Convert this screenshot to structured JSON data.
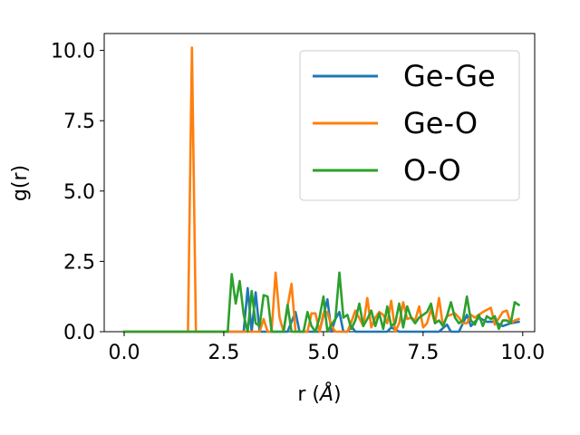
{
  "chart_data": {
    "type": "line",
    "xlabel_prefix": "r (",
    "xlabel_unit": "Å",
    "xlabel_suffix": ")",
    "ylabel": "g(r)",
    "xlim": [
      -0.5,
      10.3
    ],
    "ylim": [
      0,
      10.6
    ],
    "xticks": [
      0.0,
      2.5,
      5.0,
      7.5,
      10.0
    ],
    "xtick_labels": [
      "0.0",
      "2.5",
      "5.0",
      "7.5",
      "10.0"
    ],
    "yticks": [
      0.0,
      2.5,
      5.0,
      7.5,
      10.0
    ],
    "ytick_labels": [
      "0.0",
      "2.5",
      "5.0",
      "7.5",
      "10.0"
    ],
    "grid": false,
    "legend_position": "upper right",
    "series": [
      {
        "name": "Ge-Ge",
        "color": "#1f77b4",
        "points": [
          [
            0.0,
            0
          ],
          [
            3.0,
            0
          ],
          [
            3.1,
            1.55
          ],
          [
            3.2,
            0
          ],
          [
            3.3,
            1.4
          ],
          [
            3.4,
            0
          ],
          [
            3.5,
            0
          ],
          [
            3.6,
            0
          ],
          [
            4.0,
            0
          ],
          [
            4.1,
            0
          ],
          [
            4.3,
            0.7
          ],
          [
            4.4,
            0
          ],
          [
            4.5,
            0
          ],
          [
            4.6,
            0
          ],
          [
            4.9,
            0
          ],
          [
            5.1,
            1.15
          ],
          [
            5.2,
            0
          ],
          [
            5.3,
            0.45
          ],
          [
            5.4,
            0.7
          ],
          [
            5.5,
            0
          ],
          [
            5.6,
            0
          ],
          [
            5.7,
            0.2
          ],
          [
            5.8,
            0
          ],
          [
            6.0,
            0
          ],
          [
            6.2,
            0
          ],
          [
            6.6,
            0
          ],
          [
            6.7,
            0.15
          ],
          [
            6.9,
            0
          ],
          [
            7.0,
            0
          ],
          [
            7.2,
            0
          ],
          [
            7.5,
            0
          ],
          [
            7.7,
            0
          ],
          [
            7.9,
            0
          ],
          [
            8.1,
            0.25
          ],
          [
            8.2,
            0
          ],
          [
            8.4,
            0
          ],
          [
            8.6,
            0.6
          ],
          [
            8.7,
            0.2
          ],
          [
            8.9,
            0.5
          ],
          [
            9.1,
            0.35
          ],
          [
            9.3,
            0.35
          ],
          [
            9.5,
            0.2
          ],
          [
            9.7,
            0.3
          ],
          [
            9.9,
            0.35
          ]
        ]
      },
      {
        "name": "Ge-O",
        "color": "#ff7f0e",
        "points": [
          [
            0.0,
            0
          ],
          [
            1.6,
            0
          ],
          [
            1.7,
            10.1
          ],
          [
            1.8,
            0
          ],
          [
            3.4,
            0
          ],
          [
            3.5,
            0.45
          ],
          [
            3.6,
            0
          ],
          [
            3.7,
            0
          ],
          [
            3.8,
            2.1
          ],
          [
            3.9,
            0.5
          ],
          [
            4.0,
            0
          ],
          [
            4.1,
            0.9
          ],
          [
            4.2,
            1.7
          ],
          [
            4.3,
            0
          ],
          [
            4.4,
            0
          ],
          [
            4.6,
            0
          ],
          [
            4.7,
            0.65
          ],
          [
            4.8,
            0.65
          ],
          [
            4.9,
            0
          ],
          [
            5.0,
            0.65
          ],
          [
            5.1,
            0.7
          ],
          [
            5.2,
            0.2
          ],
          [
            5.3,
            0
          ],
          [
            5.4,
            0
          ],
          [
            5.6,
            0
          ],
          [
            5.7,
            0.35
          ],
          [
            5.8,
            0.75
          ],
          [
            6.0,
            0.2
          ],
          [
            6.1,
            1.2
          ],
          [
            6.2,
            0.15
          ],
          [
            6.3,
            0.5
          ],
          [
            6.4,
            0.7
          ],
          [
            6.5,
            0.6
          ],
          [
            6.6,
            0.3
          ],
          [
            6.7,
            1.1
          ],
          [
            6.8,
            0
          ],
          [
            6.9,
            0.3
          ],
          [
            7.0,
            1.05
          ],
          [
            7.1,
            0.45
          ],
          [
            7.2,
            0.5
          ],
          [
            7.3,
            0.4
          ],
          [
            7.4,
            0.9
          ],
          [
            7.5,
            0.15
          ],
          [
            7.6,
            0.3
          ],
          [
            7.7,
            0.8
          ],
          [
            7.8,
            0.3
          ],
          [
            7.9,
            1.2
          ],
          [
            8.0,
            0.2
          ],
          [
            8.1,
            0.55
          ],
          [
            8.3,
            0.65
          ],
          [
            8.4,
            0.5
          ],
          [
            8.5,
            0.3
          ],
          [
            8.6,
            0.3
          ],
          [
            8.7,
            0.6
          ],
          [
            8.8,
            0.5
          ],
          [
            9.0,
            0.7
          ],
          [
            9.2,
            0.85
          ],
          [
            9.3,
            0.25
          ],
          [
            9.5,
            0.7
          ],
          [
            9.6,
            0.75
          ],
          [
            9.7,
            0.3
          ],
          [
            9.8,
            0.4
          ],
          [
            9.9,
            0.45
          ]
        ]
      },
      {
        "name": "O-O",
        "color": "#2ca02c",
        "points": [
          [
            0.0,
            0
          ],
          [
            2.5,
            0
          ],
          [
            2.6,
            0
          ],
          [
            2.7,
            2.05
          ],
          [
            2.8,
            1.0
          ],
          [
            2.9,
            1.8
          ],
          [
            3.0,
            0.6
          ],
          [
            3.1,
            0
          ],
          [
            3.2,
            1.45
          ],
          [
            3.3,
            0.3
          ],
          [
            3.4,
            0.2
          ],
          [
            3.5,
            1.3
          ],
          [
            3.6,
            1.25
          ],
          [
            3.7,
            0
          ],
          [
            3.8,
            0
          ],
          [
            4.0,
            0
          ],
          [
            4.1,
            0.95
          ],
          [
            4.2,
            0
          ],
          [
            4.3,
            0
          ],
          [
            4.4,
            0
          ],
          [
            4.5,
            0
          ],
          [
            4.6,
            0.7
          ],
          [
            4.7,
            0.2
          ],
          [
            4.8,
            0
          ],
          [
            4.9,
            0.5
          ],
          [
            5.0,
            1.25
          ],
          [
            5.1,
            0
          ],
          [
            5.2,
            0.25
          ],
          [
            5.3,
            0.45
          ],
          [
            5.4,
            2.1
          ],
          [
            5.5,
            0.5
          ],
          [
            5.6,
            0.6
          ],
          [
            5.7,
            0.1
          ],
          [
            5.8,
            0.4
          ],
          [
            5.9,
            1.0
          ],
          [
            6.0,
            0.2
          ],
          [
            6.1,
            0.45
          ],
          [
            6.2,
            0.75
          ],
          [
            6.3,
            0.2
          ],
          [
            6.4,
            0.65
          ],
          [
            6.5,
            0.1
          ],
          [
            6.6,
            0.9
          ],
          [
            6.7,
            0.2
          ],
          [
            6.8,
            0.3
          ],
          [
            6.9,
            1.0
          ],
          [
            7.0,
            0.15
          ],
          [
            7.1,
            0.9
          ],
          [
            7.2,
            0.5
          ],
          [
            7.3,
            0.3
          ],
          [
            7.4,
            0.5
          ],
          [
            7.5,
            0.6
          ],
          [
            7.6,
            0.7
          ],
          [
            7.7,
            1.0
          ],
          [
            7.8,
            0.3
          ],
          [
            7.9,
            0.4
          ],
          [
            8.0,
            0.2
          ],
          [
            8.1,
            0.55
          ],
          [
            8.2,
            1.05
          ],
          [
            8.3,
            0.5
          ],
          [
            8.4,
            0.3
          ],
          [
            8.5,
            0.4
          ],
          [
            8.6,
            1.25
          ],
          [
            8.7,
            0.4
          ],
          [
            8.8,
            0.25
          ],
          [
            8.9,
            0.6
          ],
          [
            9.0,
            0.2
          ],
          [
            9.1,
            0.55
          ],
          [
            9.2,
            0.45
          ],
          [
            9.3,
            0.55
          ],
          [
            9.4,
            0.1
          ],
          [
            9.5,
            0.4
          ],
          [
            9.6,
            0.4
          ],
          [
            9.7,
            0.3
          ],
          [
            9.8,
            1.05
          ],
          [
            9.9,
            0.95
          ]
        ]
      }
    ]
  }
}
